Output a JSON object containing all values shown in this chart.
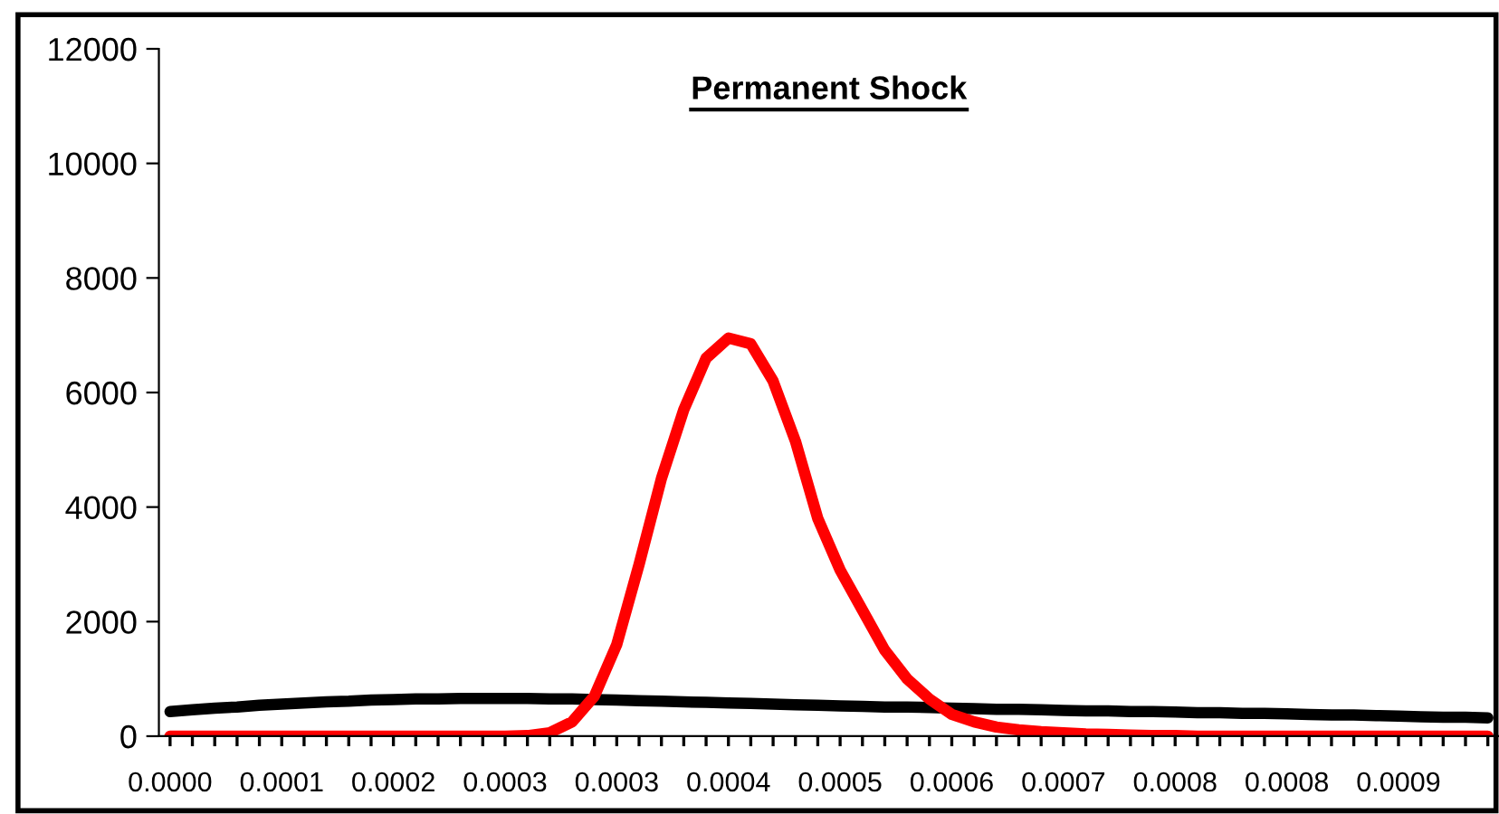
{
  "chart_data": {
    "type": "line",
    "title": "Permanent Shock",
    "categories": [
      "0.0000",
      null,
      null,
      null,
      null,
      "0.0001",
      null,
      null,
      null,
      null,
      "0.0002",
      null,
      null,
      null,
      null,
      "0.0003",
      null,
      null,
      null,
      null,
      "0.0003",
      null,
      null,
      null,
      null,
      "0.0004",
      null,
      null,
      null,
      null,
      "0.0005",
      null,
      null,
      null,
      null,
      "0.0006",
      null,
      null,
      null,
      null,
      "0.0007",
      null,
      null,
      null,
      null,
      "0.0008",
      null,
      null,
      null,
      null,
      "0.0008",
      null,
      null,
      null,
      null,
      "0.0009",
      null,
      null,
      null,
      null
    ],
    "series": [
      {
        "color": "#000000",
        "values": [
          430,
          460,
          490,
          510,
          540,
          560,
          580,
          600,
          610,
          630,
          640,
          650,
          650,
          660,
          660,
          660,
          660,
          650,
          650,
          640,
          630,
          620,
          610,
          600,
          590,
          580,
          570,
          560,
          550,
          540,
          530,
          520,
          510,
          510,
          500,
          490,
          480,
          470,
          470,
          460,
          450,
          440,
          440,
          430,
          430,
          420,
          410,
          410,
          400,
          400,
          390,
          380,
          370,
          370,
          360,
          350,
          340,
          330,
          330,
          320
        ]
      },
      {
        "color": "#ff0000",
        "values": [
          0,
          0,
          0,
          0,
          0,
          0,
          0,
          0,
          0,
          0,
          0,
          0,
          0,
          0,
          0,
          0,
          10,
          60,
          250,
          700,
          1600,
          3000,
          4500,
          5700,
          6600,
          6950,
          6850,
          6200,
          5150,
          3800,
          2900,
          2200,
          1500,
          1000,
          650,
          380,
          250,
          160,
          110,
          80,
          60,
          40,
          30,
          20,
          10,
          10,
          0,
          0,
          0,
          0,
          0,
          0,
          0,
          0,
          0,
          0,
          0,
          0,
          0,
          0
        ]
      }
    ],
    "ylim": [
      0,
      12000
    ],
    "yticks": [
      0,
      2000,
      4000,
      6000,
      8000,
      10000,
      12000
    ],
    "grid": false,
    "legend": false,
    "marker": "none",
    "line_style": "solid"
  }
}
